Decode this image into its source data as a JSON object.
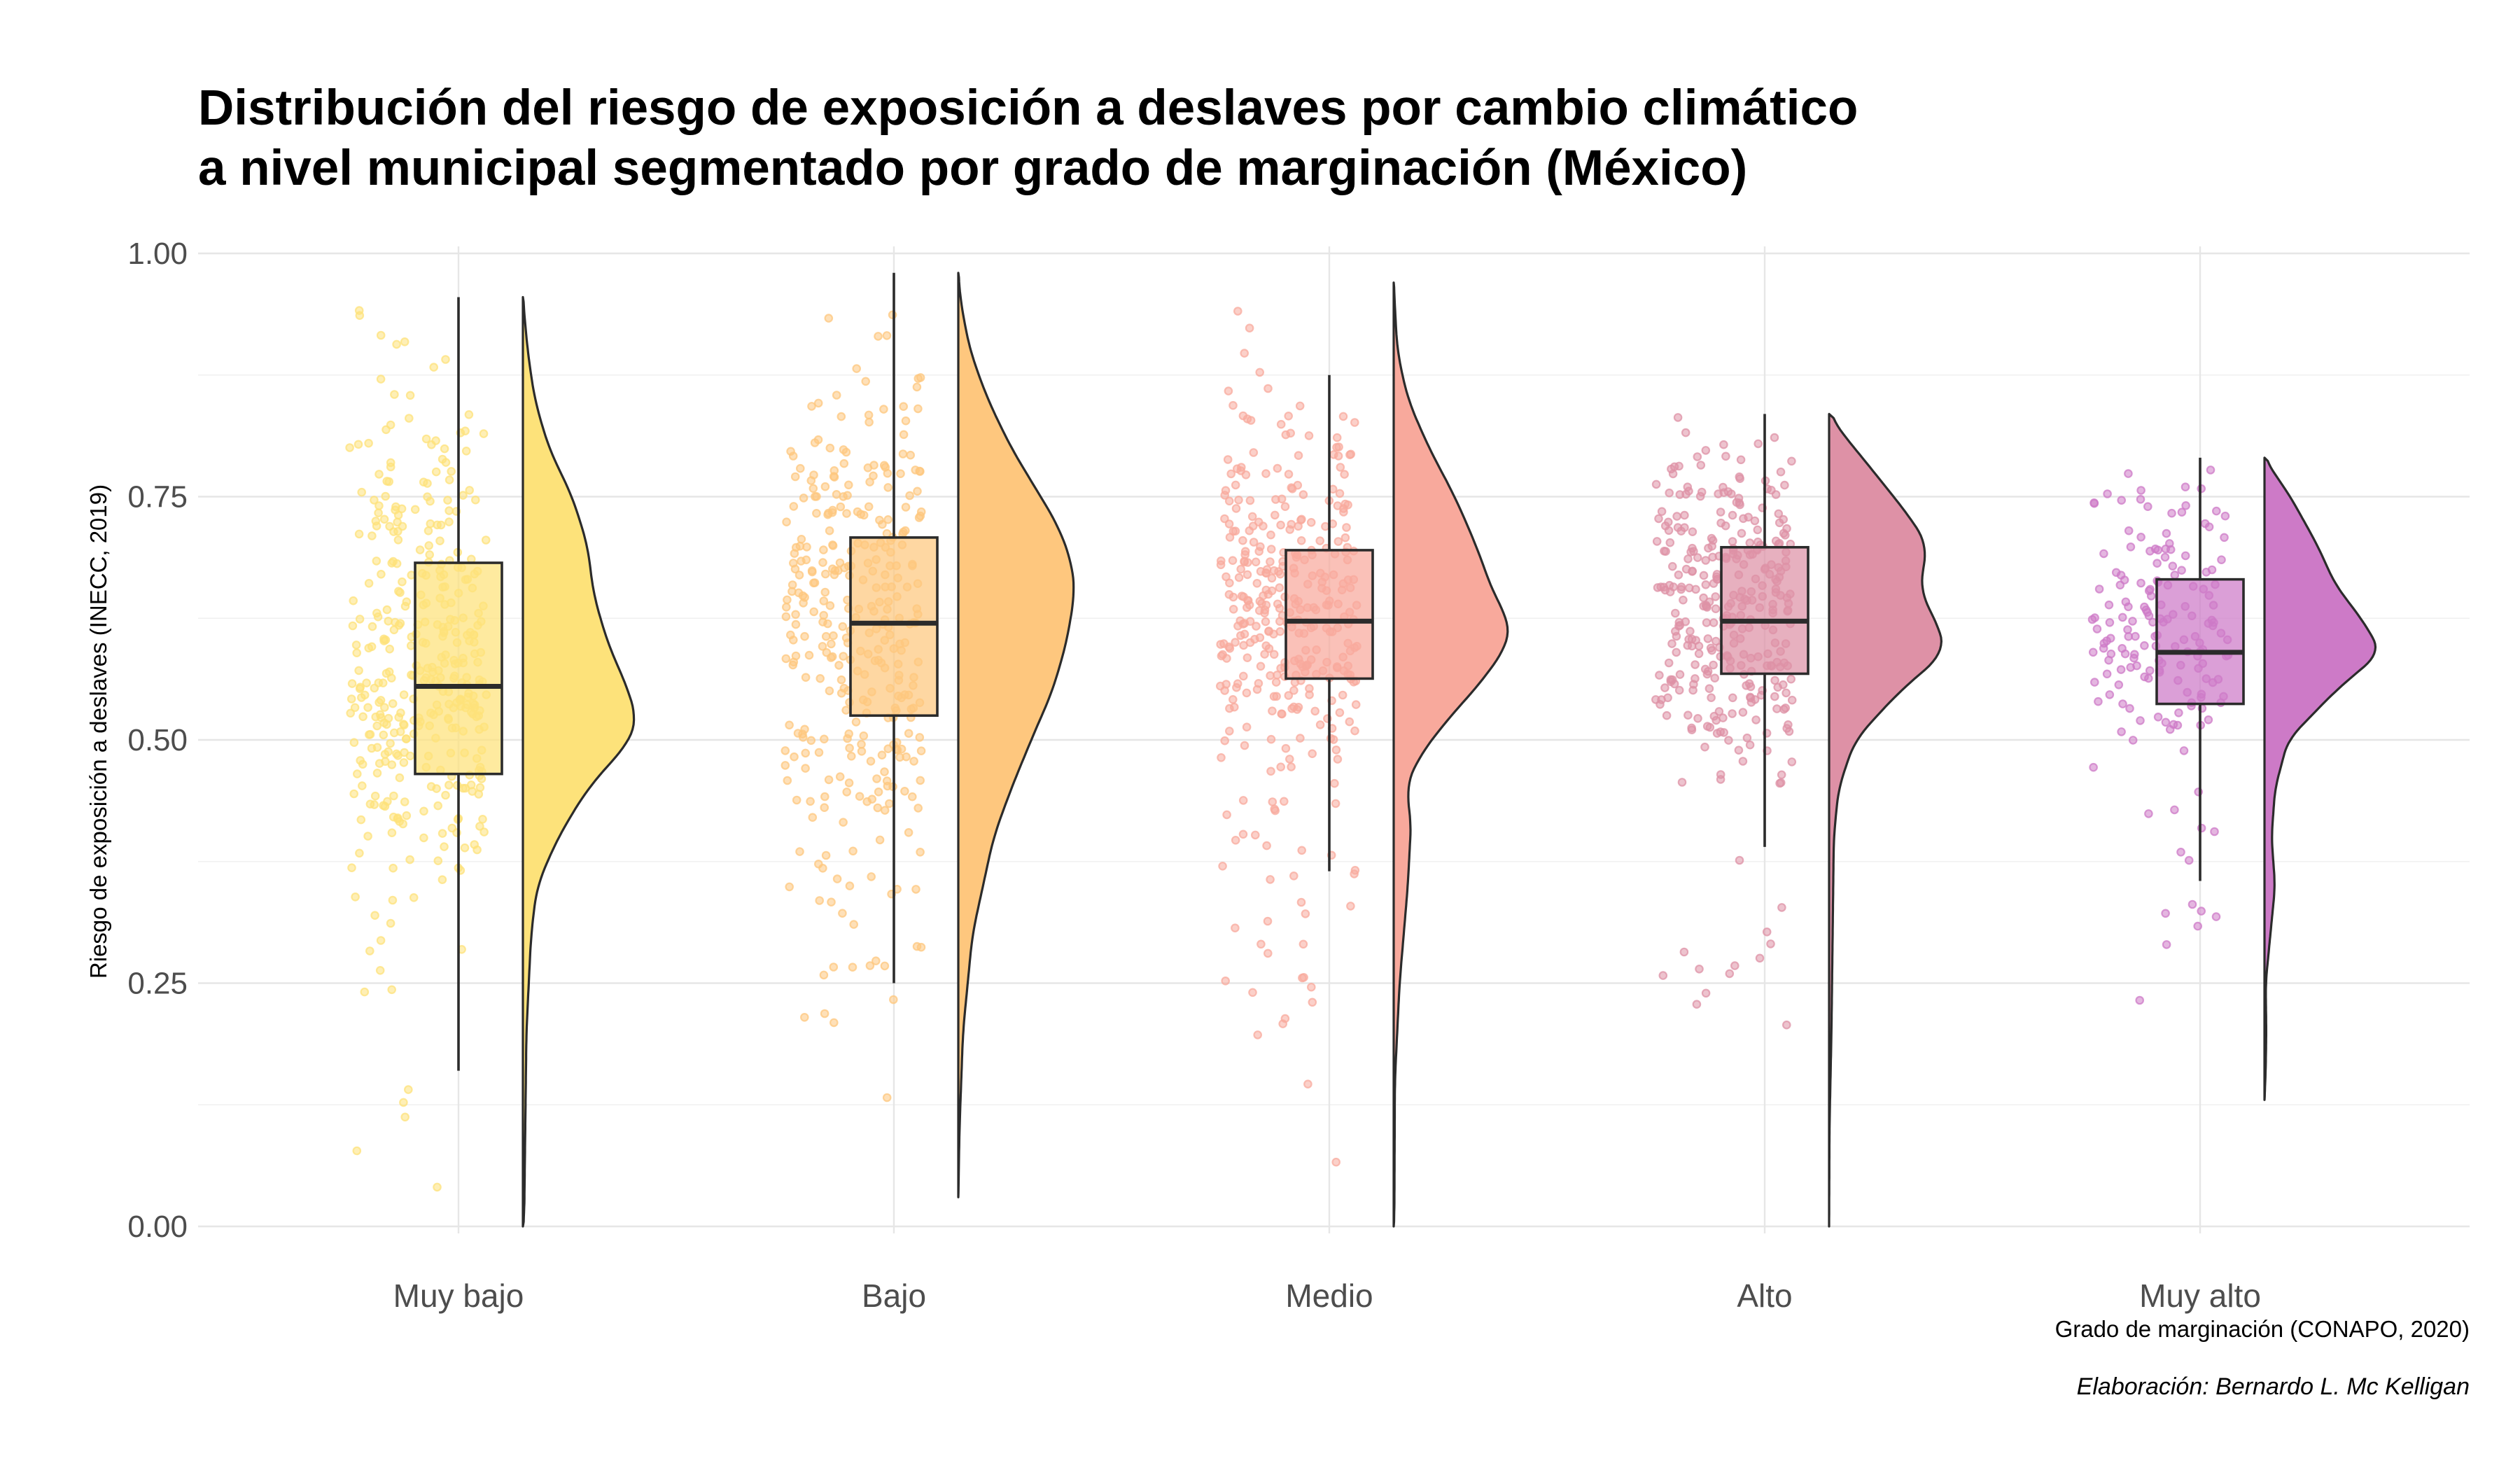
{
  "chart_data": {
    "type": "raincloud",
    "title_lines": [
      "Distribución del riesgo de exposición a deslaves por cambio climático",
      "a nivel municipal segmentado por grado de marginación (México)"
    ],
    "xlabel": "Grado de marginación (CONAPO, 2020)",
    "ylabel": "Riesgo de exposición a deslaves (INECC, 2019)",
    "caption": "Elaboración: Bernardo L. Mc Kelligan",
    "ylim": [
      0,
      1
    ],
    "yticks": [
      "0.00",
      "0.25",
      "0.50",
      "0.75",
      "1.00"
    ],
    "grid": true,
    "categories": [
      "Muy bajo",
      "Bajo",
      "Medio",
      "Alto",
      "Muy alto"
    ],
    "series": [
      {
        "category": "Muy bajo",
        "color": "#fde27a",
        "box": {
          "min": 0.16,
          "q1": 0.465,
          "median": 0.555,
          "q3": 0.682,
          "max": 0.955
        },
        "density": [
          [
            0,
            0.01
          ],
          [
            0.1,
            0.02
          ],
          [
            0.2,
            0.03
          ],
          [
            0.3,
            0.07
          ],
          [
            0.35,
            0.12
          ],
          [
            0.4,
            0.3
          ],
          [
            0.45,
            0.55
          ],
          [
            0.5,
            0.92
          ],
          [
            0.52,
            0.97
          ],
          [
            0.55,
            0.9
          ],
          [
            0.6,
            0.72
          ],
          [
            0.65,
            0.6
          ],
          [
            0.7,
            0.55
          ],
          [
            0.75,
            0.42
          ],
          [
            0.8,
            0.22
          ],
          [
            0.85,
            0.1
          ],
          [
            0.9,
            0.04
          ],
          [
            0.955,
            0
          ]
        ],
        "n_points": 380
      },
      {
        "category": "Bajo",
        "color": "#fec77e",
        "box": {
          "min": 0.25,
          "q1": 0.525,
          "median": 0.62,
          "q3": 0.708,
          "max": 0.98
        },
        "density": [
          [
            0.03,
            0
          ],
          [
            0.1,
            0.01
          ],
          [
            0.2,
            0.04
          ],
          [
            0.3,
            0.12
          ],
          [
            0.4,
            0.3
          ],
          [
            0.45,
            0.45
          ],
          [
            0.5,
            0.62
          ],
          [
            0.55,
            0.8
          ],
          [
            0.6,
            0.92
          ],
          [
            0.65,
            0.99
          ],
          [
            0.68,
            0.97
          ],
          [
            0.72,
            0.85
          ],
          [
            0.75,
            0.7
          ],
          [
            0.8,
            0.45
          ],
          [
            0.85,
            0.25
          ],
          [
            0.9,
            0.1
          ],
          [
            0.95,
            0.02
          ],
          [
            0.98,
            0
          ]
        ],
        "n_points": 340
      },
      {
        "category": "Medio",
        "color": "#f8a99c",
        "box": {
          "min": 0.365,
          "q1": 0.563,
          "median": 0.622,
          "q3": 0.695,
          "max": 0.875
        },
        "density": [
          [
            0,
            0.005
          ],
          [
            0.15,
            0.01
          ],
          [
            0.25,
            0.05
          ],
          [
            0.35,
            0.12
          ],
          [
            0.42,
            0.15
          ],
          [
            0.45,
            0.1
          ],
          [
            0.48,
            0.2
          ],
          [
            0.52,
            0.45
          ],
          [
            0.56,
            0.75
          ],
          [
            0.6,
            0.98
          ],
          [
            0.62,
            0.99
          ],
          [
            0.65,
            0.85
          ],
          [
            0.7,
            0.7
          ],
          [
            0.75,
            0.52
          ],
          [
            0.8,
            0.3
          ],
          [
            0.85,
            0.12
          ],
          [
            0.9,
            0.03
          ],
          [
            0.97,
            0
          ]
        ],
        "n_points": 360
      },
      {
        "category": "Alto",
        "color": "#de91a6",
        "box": {
          "min": 0.39,
          "q1": 0.568,
          "median": 0.622,
          "q3": 0.698,
          "max": 0.835
        },
        "density": [
          [
            0,
            0
          ],
          [
            0.1,
            0.003
          ],
          [
            0.2,
            0.02
          ],
          [
            0.3,
            0.03
          ],
          [
            0.4,
            0.04
          ],
          [
            0.45,
            0.08
          ],
          [
            0.5,
            0.22
          ],
          [
            0.55,
            0.6
          ],
          [
            0.59,
            0.99
          ],
          [
            0.62,
            0.92
          ],
          [
            0.65,
            0.78
          ],
          [
            0.68,
            0.8
          ],
          [
            0.7,
            0.84
          ],
          [
            0.73,
            0.68
          ],
          [
            0.78,
            0.35
          ],
          [
            0.82,
            0.08
          ],
          [
            0.835,
            0
          ]
        ],
        "n_points": 330
      },
      {
        "category": "Muy alto",
        "color": "#cd7ac7",
        "box": {
          "min": 0.355,
          "q1": 0.537,
          "median": 0.59,
          "q3": 0.665,
          "max": 0.79
        },
        "density": [
          [
            0.13,
            0
          ],
          [
            0.16,
            0.01
          ],
          [
            0.2,
            0.015
          ],
          [
            0.25,
            0.01
          ],
          [
            0.3,
            0.05
          ],
          [
            0.35,
            0.09
          ],
          [
            0.4,
            0.06
          ],
          [
            0.45,
            0.09
          ],
          [
            0.5,
            0.2
          ],
          [
            0.55,
            0.6
          ],
          [
            0.59,
            0.99
          ],
          [
            0.62,
            0.85
          ],
          [
            0.66,
            0.6
          ],
          [
            0.7,
            0.45
          ],
          [
            0.75,
            0.22
          ],
          [
            0.78,
            0.05
          ],
          [
            0.79,
            0
          ]
        ],
        "n_points": 170
      }
    ]
  }
}
